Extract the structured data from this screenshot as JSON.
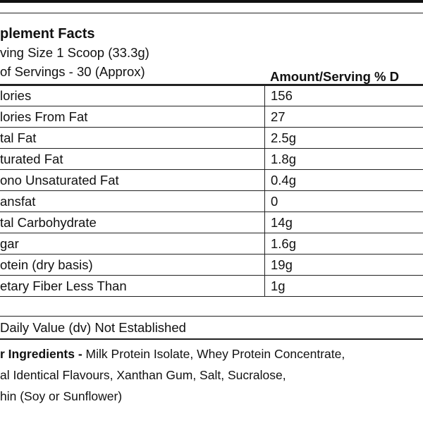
{
  "header": {
    "title": "plement Facts",
    "serving_size": "ving Size 1 Scoop (33.3g)",
    "servings": "of Servings - 30 (Approx)",
    "column_header": "Amount/Serving % D"
  },
  "table": {
    "rows": [
      [
        "lories",
        "156"
      ],
      [
        "lories From Fat",
        "27"
      ],
      [
        "tal Fat",
        "2.5g"
      ],
      [
        "turated Fat",
        "1.8g"
      ],
      [
        "ono Unsaturated Fat",
        "0.4g"
      ],
      [
        "ansfat",
        "0"
      ],
      [
        "tal Carbohydrate",
        "14g"
      ],
      [
        "gar",
        "1.6g"
      ],
      [
        "otein (dry basis)",
        "19g"
      ],
      [
        "etary Fiber Less Than",
        "1g"
      ]
    ]
  },
  "footnote": "Daily Value (dv) Not Established",
  "ingredients": {
    "label": "r Ingredients -",
    "lines": [
      " Milk Protein Isolate, Whey Protein Concentrate,",
      "al Identical Flavours, Xanthan Gum, Salt, Sucralose,",
      "hin (Soy or Sunflower)"
    ]
  }
}
